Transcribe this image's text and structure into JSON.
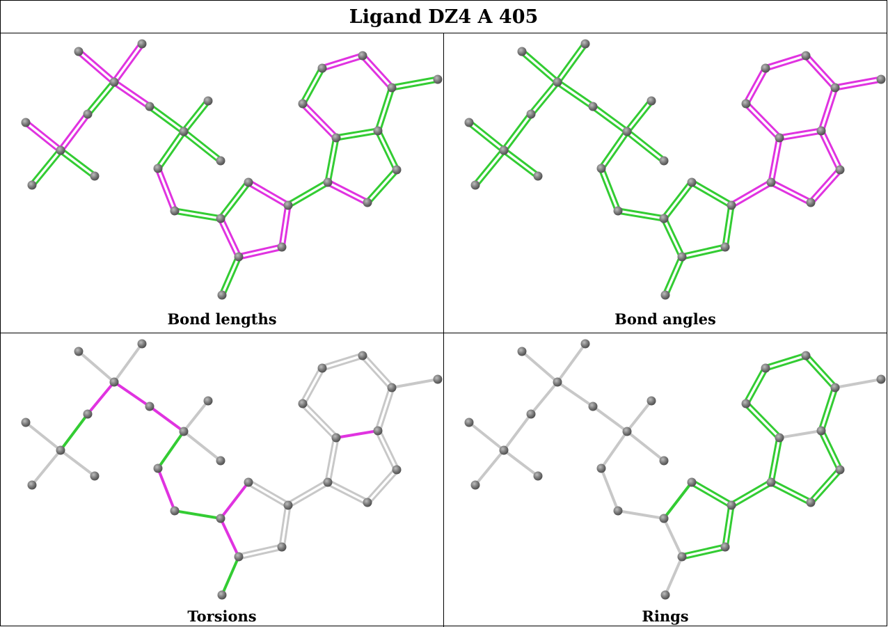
{
  "title": "Ligand DZ4 A 405",
  "colors": {
    "green": "#33cc33",
    "magenta": "#e033e0",
    "grey": "#c8c8c8",
    "atom": "#777777"
  },
  "panels": [
    {
      "caption": "Bond lengths",
      "bond_colors": [
        "m",
        "m",
        "g",
        "m",
        "m",
        "g",
        "g",
        "m",
        "g",
        "g",
        "g",
        "g",
        "m",
        "g",
        "m",
        "g",
        "g",
        "m",
        "m",
        "m",
        "g",
        "g",
        "g",
        "g",
        "g",
        "m",
        "m",
        "g",
        "m",
        "m",
        "g",
        "g"
      ],
      "double": [
        true,
        true,
        true,
        true,
        true,
        true,
        true,
        true,
        true,
        true,
        true,
        true,
        true,
        true,
        true,
        true,
        true,
        true,
        true,
        true,
        true,
        true,
        true,
        true,
        true,
        true,
        true,
        true,
        true,
        true,
        true,
        true
      ]
    },
    {
      "caption": "Bond angles",
      "bond_colors": [
        "g",
        "g",
        "g",
        "g",
        "g",
        "g",
        "g",
        "g",
        "g",
        "g",
        "g",
        "g",
        "g",
        "g",
        "g",
        "g",
        "g",
        "g",
        "g",
        "g",
        "m",
        "m",
        "m",
        "m",
        "m",
        "m",
        "m",
        "m",
        "m",
        "m",
        "m",
        "m"
      ],
      "double": [
        true,
        true,
        true,
        true,
        true,
        true,
        true,
        true,
        true,
        true,
        true,
        true,
        true,
        true,
        true,
        true,
        true,
        true,
        true,
        true,
        true,
        true,
        true,
        true,
        true,
        true,
        true,
        true,
        true,
        true,
        true,
        true
      ]
    },
    {
      "caption": "Torsions",
      "bond_colors": [
        "n",
        "n",
        "m",
        "g",
        "n",
        "n",
        "n",
        "m",
        "m",
        "n",
        "n",
        "g",
        "m",
        "g",
        "m",
        "g",
        "m",
        "n",
        "n",
        "n",
        "n",
        "n",
        "m",
        "n",
        "n",
        "n",
        "n",
        "n",
        "n",
        "n",
        "n",
        "n"
      ],
      "double": [
        false,
        false,
        false,
        false,
        false,
        false,
        false,
        false,
        false,
        false,
        false,
        false,
        false,
        false,
        false,
        false,
        false,
        true,
        true,
        true,
        true,
        true,
        false,
        true,
        true,
        true,
        true,
        true,
        true,
        true,
        true,
        false
      ]
    },
    {
      "caption": "Rings",
      "bond_colors": [
        "n",
        "n",
        "n",
        "n",
        "n",
        "n",
        "n",
        "n",
        "n",
        "n",
        "n",
        "n",
        "n",
        "n",
        "n",
        "n",
        "g",
        "g",
        "g",
        "g",
        "g",
        "g",
        "n",
        "g",
        "g",
        "g",
        "g",
        "g",
        "g",
        "g",
        "g",
        "n"
      ],
      "double": [
        false,
        false,
        false,
        false,
        false,
        false,
        false,
        false,
        false,
        false,
        false,
        false,
        false,
        false,
        false,
        false,
        false,
        true,
        true,
        true,
        true,
        true,
        false,
        true,
        true,
        true,
        true,
        true,
        true,
        true,
        true,
        false
      ]
    }
  ]
}
